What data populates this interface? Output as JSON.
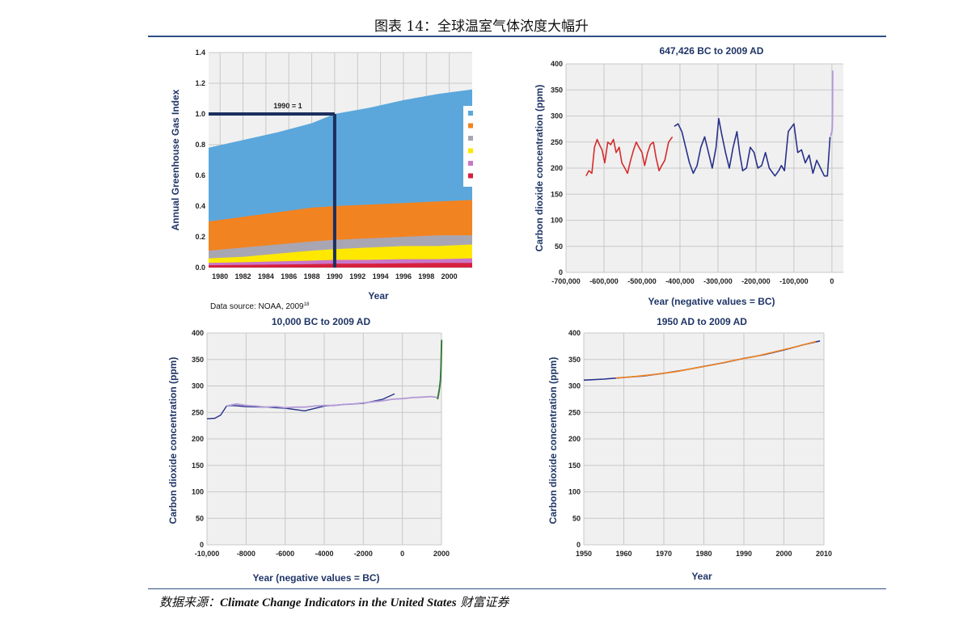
{
  "caption": "图表 14：全球温室气体浓度大幅升",
  "source_prefix": "数据来源：",
  "source_main": "Climate Change Indicators in the United States",
  "source_suffix": " 财富证券",
  "colors": {
    "rule": "#2f4e86",
    "title": "#1f3566",
    "plot_bg": "#f0f0f0",
    "grid": "#c8c8c8",
    "old_series": "#d62b2b",
    "recent_series": "#27318a",
    "ice_core": "#b39ad6",
    "stacked": [
      "#5ba7dc",
      "#f28321",
      "#a9a6b3",
      "#ffe800",
      "#c977c9",
      "#d7203e"
    ]
  },
  "chart_data": [
    {
      "type": "area",
      "id": "greenhouse-index",
      "title": "",
      "xlabel": "Year",
      "ylabel": "Annual Greenhouse Gas Index",
      "xlim": [
        1979,
        2002
      ],
      "ylim": [
        0,
        1.4
      ],
      "xticks": [
        1980,
        1982,
        1984,
        1986,
        1988,
        1990,
        1992,
        1994,
        1996,
        1998,
        2000
      ],
      "yticks": [
        0.0,
        0.2,
        0.4,
        0.6,
        0.8,
        1.0,
        1.2,
        1.4
      ],
      "ytick_labels": [
        "0.0",
        "0.2",
        "0.4",
        "0.6",
        "0.8",
        "1.0",
        "1.2",
        "1.4"
      ],
      "annotation": "1990 = 1",
      "reference": {
        "x": 1990,
        "y": 1.0
      },
      "note": "Data source: NOAA, 2009",
      "note_sup": "18",
      "x": [
        1979,
        1982,
        1985,
        1988,
        1990,
        1993,
        1996,
        1999,
        2002
      ],
      "cumulative_series": [
        {
          "values": [
            0.78,
            0.83,
            0.88,
            0.94,
            1.0,
            1.04,
            1.09,
            1.13,
            1.16
          ]
        },
        {
          "values": [
            0.3,
            0.33,
            0.36,
            0.39,
            0.4,
            0.41,
            0.42,
            0.43,
            0.44
          ]
        },
        {
          "values": [
            0.11,
            0.13,
            0.15,
            0.17,
            0.18,
            0.19,
            0.2,
            0.21,
            0.21
          ]
        },
        {
          "values": [
            0.06,
            0.07,
            0.09,
            0.11,
            0.12,
            0.13,
            0.14,
            0.14,
            0.15
          ]
        },
        {
          "values": [
            0.03,
            0.035,
            0.04,
            0.045,
            0.05,
            0.05,
            0.055,
            0.055,
            0.06
          ]
        },
        {
          "values": [
            0.015,
            0.017,
            0.02,
            0.022,
            0.025,
            0.026,
            0.028,
            0.03,
            0.03
          ]
        }
      ]
    },
    {
      "type": "line",
      "id": "co2-647k",
      "title": "647,426 BC to 2009 AD",
      "xlabel": "Year (negative values = BC)",
      "ylabel": "Carbon dioxide concentration (ppm)",
      "xlim": [
        -700000,
        30000
      ],
      "ylim": [
        0,
        400
      ],
      "xticks": [
        -700000,
        -600000,
        -500000,
        -400000,
        -300000,
        -200000,
        -100000,
        0
      ],
      "xtick_labels": [
        "-700,000",
        "-600,000",
        "-500,000",
        "-400,000",
        "-300,000",
        "-200,000",
        "-100,000",
        "0"
      ],
      "yticks": [
        0,
        50,
        100,
        150,
        200,
        250,
        300,
        350,
        400
      ],
      "series": [
        {
          "x": [
            -647000,
            -640000,
            -632000,
            -625000,
            -618000,
            -612000,
            -605000,
            -598000,
            -590000,
            -582000,
            -575000,
            -568000,
            -560000,
            -553000,
            -545000,
            -538000,
            -530000,
            -522000,
            -515000,
            -508000,
            -500000,
            -493000,
            -485000,
            -478000,
            -470000,
            -463000,
            -455000,
            -448000,
            -440000,
            -430000,
            -420000
          ],
          "y": [
            185,
            195,
            190,
            240,
            255,
            245,
            235,
            210,
            250,
            245,
            255,
            230,
            240,
            210,
            200,
            190,
            215,
            235,
            250,
            240,
            230,
            205,
            230,
            245,
            250,
            220,
            195,
            205,
            215,
            250,
            260
          ]
        },
        {
          "x": [
            -415000,
            -405000,
            -395000,
            -385000,
            -375000,
            -365000,
            -355000,
            -345000,
            -335000,
            -325000,
            -315000,
            -305000,
            -298000,
            -290000,
            -280000,
            -270000,
            -260000,
            -250000,
            -243000,
            -235000,
            -225000,
            -215000,
            -205000,
            -195000,
            -185000,
            -175000,
            -165000,
            -150000,
            -140000,
            -133000,
            -125000,
            -115000,
            -100000,
            -90000,
            -80000,
            -70000,
            -60000,
            -50000,
            -40000,
            -30000,
            -20000,
            -12000,
            -5000
          ],
          "y": [
            280,
            285,
            270,
            240,
            210,
            190,
            205,
            240,
            260,
            230,
            200,
            240,
            295,
            265,
            230,
            200,
            240,
            270,
            230,
            195,
            200,
            240,
            230,
            200,
            205,
            230,
            200,
            185,
            195,
            205,
            195,
            270,
            285,
            230,
            235,
            210,
            225,
            190,
            215,
            200,
            185,
            185,
            260
          ]
        },
        {
          "x": [
            -3000,
            0,
            1000,
            1500,
            2009
          ],
          "y": [
            262,
            270,
            280,
            310,
            387
          ]
        }
      ]
    },
    {
      "type": "line",
      "id": "co2-10k",
      "title": "10,000 BC to 2009 AD",
      "xlabel": "Year (negative values = BC)",
      "ylabel": "Carbon dioxide concentration (ppm)",
      "xlim": [
        -10000,
        2000
      ],
      "ylim": [
        0,
        400
      ],
      "xticks": [
        -10000,
        -8000,
        -6000,
        -4000,
        -2000,
        0,
        2000
      ],
      "xtick_labels": [
        "-10,000",
        "-8000",
        "-6000",
        "-4000",
        "-2000",
        "0",
        "2000"
      ],
      "yticks": [
        0,
        50,
        100,
        150,
        200,
        250,
        300,
        350,
        400
      ],
      "series": [
        {
          "x": [
            -10000,
            -9600,
            -9300,
            -9000,
            -8700,
            -8000,
            -7000,
            -6000,
            -5000,
            -4000,
            -3000,
            -2000,
            -1000,
            -400
          ],
          "y": [
            238,
            239,
            245,
            262,
            263,
            261,
            260,
            258,
            253,
            262,
            265,
            267,
            275,
            285
          ]
        },
        {
          "x": [
            -9000,
            -8500,
            -8000,
            -7500,
            -7000,
            -6500,
            -6000,
            -5500,
            -5000,
            -4500,
            -4000,
            -3500,
            -3000,
            -2500,
            -2000,
            -1500,
            -1000,
            -500,
            0,
            500,
            1000,
            1500,
            1800
          ],
          "y": [
            262,
            266,
            263,
            262,
            260,
            261,
            259,
            260,
            260,
            262,
            263,
            263,
            265,
            266,
            268,
            270,
            272,
            275,
            276,
            278,
            279,
            280,
            278
          ]
        },
        {
          "x": [
            1800,
            1850,
            1900,
            1950,
            1980,
            2009
          ],
          "y": [
            275,
            285,
            296,
            312,
            338,
            387
          ]
        }
      ]
    },
    {
      "type": "line",
      "id": "co2-1950",
      "title": "1950 AD to 2009 AD",
      "xlabel": "Year",
      "ylabel": "Carbon dioxide concentration (ppm)",
      "xlim": [
        1950,
        2010
      ],
      "ylim": [
        0,
        400
      ],
      "xticks": [
        1950,
        1960,
        1970,
        1980,
        1990,
        2000,
        2010
      ],
      "yticks": [
        0,
        50,
        100,
        150,
        200,
        250,
        300,
        350,
        400
      ],
      "series": [
        {
          "x": [
            1950,
            1955,
            1960,
            1965,
            1970,
            1975,
            1980,
            1985,
            1990,
            1995,
            2000,
            2005,
            2009
          ],
          "y": [
            311,
            313,
            316,
            319,
            324,
            330,
            337,
            344,
            352,
            359,
            368,
            378,
            385
          ]
        },
        {
          "x": [
            1958,
            1963,
            1968,
            1973,
            1978,
            1983,
            1988,
            1993,
            1998,
            2003,
            2008
          ],
          "y": [
            315,
            318,
            322,
            327,
            334,
            341,
            349,
            356,
            365,
            374,
            384
          ]
        }
      ]
    }
  ]
}
